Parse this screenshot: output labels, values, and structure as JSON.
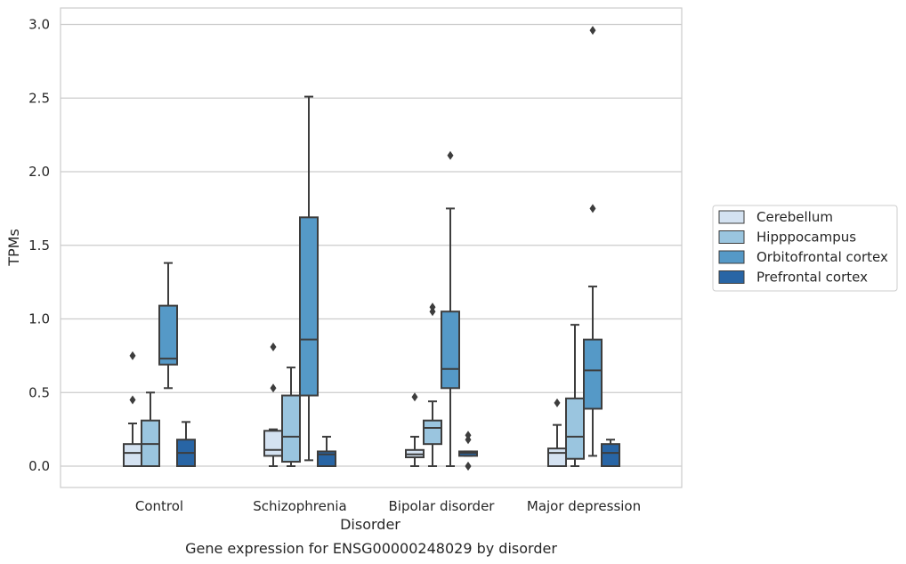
{
  "chart_data": {
    "type": "box",
    "caption": "Gene expression for ENSG00000248029 by disorder",
    "xlabel": "Disorder",
    "ylabel": "TPMs",
    "ylim": [
      -0.15,
      3.12
    ],
    "yticks": [
      0.0,
      0.5,
      1.0,
      1.5,
      2.0,
      2.5,
      3.0
    ],
    "ytick_labels": [
      "0.0",
      "0.5",
      "1.0",
      "1.5",
      "2.0",
      "2.5",
      "3.0"
    ],
    "grid": "horizontal",
    "legend_position": "right",
    "categories": [
      "Control",
      "Schizophrenia",
      "Bipolar disorder",
      "Major depression"
    ],
    "series": [
      {
        "name": "Cerebellum",
        "color": "#d4e2f1",
        "boxes": [
          {
            "q1": 0.0,
            "median": 0.09,
            "q3": 0.15,
            "whisker_low": 0.0,
            "whisker_high": 0.29,
            "outliers": [
              0.45,
              0.75
            ]
          },
          {
            "q1": 0.07,
            "median": 0.11,
            "q3": 0.24,
            "whisker_low": 0.0,
            "whisker_high": 0.25,
            "outliers": [
              0.53,
              0.81
            ]
          },
          {
            "q1": 0.06,
            "median": 0.08,
            "q3": 0.11,
            "whisker_low": 0.0,
            "whisker_high": 0.2,
            "outliers": [
              0.47
            ]
          },
          {
            "q1": 0.0,
            "median": 0.09,
            "q3": 0.12,
            "whisker_low": 0.0,
            "whisker_high": 0.28,
            "outliers": [
              0.43
            ]
          }
        ]
      },
      {
        "name": "Hipppocampus",
        "color": "#9ac5df",
        "boxes": [
          {
            "q1": 0.0,
            "median": 0.15,
            "q3": 0.31,
            "whisker_low": 0.0,
            "whisker_high": 0.5,
            "outliers": []
          },
          {
            "q1": 0.03,
            "median": 0.2,
            "q3": 0.48,
            "whisker_low": 0.0,
            "whisker_high": 0.67,
            "outliers": []
          },
          {
            "q1": 0.15,
            "median": 0.26,
            "q3": 0.31,
            "whisker_low": 0.0,
            "whisker_high": 0.44,
            "outliers": [
              1.05,
              1.08
            ]
          },
          {
            "q1": 0.05,
            "median": 0.2,
            "q3": 0.46,
            "whisker_low": 0.0,
            "whisker_high": 0.96,
            "outliers": []
          }
        ]
      },
      {
        "name": "Orbitofrontal cortex",
        "color": "#5599c7",
        "boxes": [
          {
            "q1": 0.69,
            "median": 0.73,
            "q3": 1.09,
            "whisker_low": 0.53,
            "whisker_high": 1.38,
            "outliers": []
          },
          {
            "q1": 0.48,
            "median": 0.86,
            "q3": 1.69,
            "whisker_low": 0.04,
            "whisker_high": 2.51,
            "outliers": []
          },
          {
            "q1": 0.53,
            "median": 0.66,
            "q3": 1.05,
            "whisker_low": 0.0,
            "whisker_high": 1.75,
            "outliers": [
              2.11
            ]
          },
          {
            "q1": 0.39,
            "median": 0.65,
            "q3": 0.86,
            "whisker_low": 0.07,
            "whisker_high": 1.22,
            "outliers": [
              1.75,
              2.96
            ]
          }
        ]
      },
      {
        "name": "Prefrontal cortex",
        "color": "#2865a5",
        "boxes": [
          {
            "q1": 0.0,
            "median": 0.09,
            "q3": 0.18,
            "whisker_low": 0.0,
            "whisker_high": 0.3,
            "outliers": []
          },
          {
            "q1": 0.0,
            "median": 0.08,
            "q3": 0.1,
            "whisker_low": 0.0,
            "whisker_high": 0.2,
            "outliers": []
          },
          {
            "q1": 0.07,
            "median": 0.09,
            "q3": 0.1,
            "whisker_low": 0.07,
            "whisker_high": 0.1,
            "outliers": [
              0.0,
              0.0,
              0.18,
              0.21
            ]
          },
          {
            "q1": 0.0,
            "median": 0.09,
            "q3": 0.15,
            "whisker_low": 0.0,
            "whisker_high": 0.18,
            "outliers": []
          }
        ]
      }
    ]
  }
}
